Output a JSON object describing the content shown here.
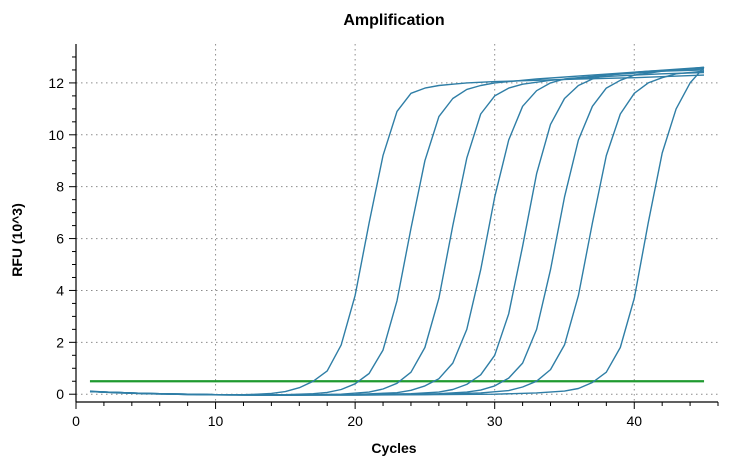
{
  "chart_data": {
    "type": "line",
    "title": "Amplification",
    "xlabel": "Cycles",
    "ylabel": "RFU (10^3)",
    "xlim": [
      0,
      46
    ],
    "ylim": [
      -0.3,
      13.5
    ],
    "xticks": [
      0,
      10,
      20,
      30,
      40
    ],
    "yticks": [
      0,
      2,
      4,
      6,
      8,
      10,
      12
    ],
    "grid": true,
    "legend": "none",
    "threshold": 0.5,
    "colors": {
      "curve": "#2f7ea6",
      "threshold": "#1f9a2f",
      "grid": "#8c8c8c",
      "axis": "#000000"
    },
    "series": [
      {
        "values": [
          [
            1,
            0.12
          ],
          [
            2,
            0.09
          ],
          [
            3,
            0.06
          ],
          [
            4,
            0.04
          ],
          [
            5,
            0.02
          ],
          [
            6,
            0.01
          ],
          [
            7,
            0.0
          ],
          [
            8,
            -0.01
          ],
          [
            9,
            -0.01
          ],
          [
            10,
            -0.02
          ],
          [
            11,
            -0.02
          ],
          [
            12,
            -0.02
          ],
          [
            13,
            0.0
          ],
          [
            14,
            0.03
          ],
          [
            15,
            0.1
          ],
          [
            16,
            0.25
          ],
          [
            17,
            0.5
          ],
          [
            18,
            0.9
          ],
          [
            19,
            1.9
          ],
          [
            20,
            3.8
          ],
          [
            21,
            6.6
          ],
          [
            22,
            9.2
          ],
          [
            23,
            10.9
          ],
          [
            24,
            11.6
          ],
          [
            25,
            11.8
          ],
          [
            26,
            11.9
          ],
          [
            27,
            11.95
          ],
          [
            28,
            12.0
          ],
          [
            30,
            12.05
          ],
          [
            33,
            12.1
          ],
          [
            36,
            12.15
          ],
          [
            40,
            12.2
          ],
          [
            45,
            12.3
          ]
        ]
      },
      {
        "values": [
          [
            1,
            0.1
          ],
          [
            3,
            0.05
          ],
          [
            5,
            0.02
          ],
          [
            7,
            0.0
          ],
          [
            9,
            -0.02
          ],
          [
            11,
            -0.03
          ],
          [
            13,
            -0.03
          ],
          [
            15,
            -0.02
          ],
          [
            17,
            0.02
          ],
          [
            18,
            0.07
          ],
          [
            19,
            0.18
          ],
          [
            20,
            0.4
          ],
          [
            21,
            0.8
          ],
          [
            22,
            1.7
          ],
          [
            23,
            3.6
          ],
          [
            24,
            6.4
          ],
          [
            25,
            9.0
          ],
          [
            26,
            10.7
          ],
          [
            27,
            11.4
          ],
          [
            28,
            11.75
          ],
          [
            29,
            11.9
          ],
          [
            30,
            12.0
          ],
          [
            33,
            12.15
          ],
          [
            37,
            12.3
          ],
          [
            41,
            12.45
          ],
          [
            45,
            12.6
          ]
        ]
      },
      {
        "values": [
          [
            1,
            0.1
          ],
          [
            4,
            0.04
          ],
          [
            8,
            -0.01
          ],
          [
            12,
            -0.03
          ],
          [
            16,
            -0.03
          ],
          [
            19,
            0.0
          ],
          [
            21,
            0.08
          ],
          [
            22,
            0.2
          ],
          [
            23,
            0.42
          ],
          [
            24,
            0.85
          ],
          [
            25,
            1.8
          ],
          [
            26,
            3.7
          ],
          [
            27,
            6.5
          ],
          [
            28,
            9.1
          ],
          [
            29,
            10.8
          ],
          [
            30,
            11.5
          ],
          [
            31,
            11.8
          ],
          [
            32,
            11.95
          ],
          [
            34,
            12.1
          ],
          [
            38,
            12.25
          ],
          [
            42,
            12.35
          ],
          [
            45,
            12.4
          ]
        ]
      },
      {
        "values": [
          [
            1,
            0.1
          ],
          [
            5,
            0.03
          ],
          [
            10,
            -0.02
          ],
          [
            15,
            -0.03
          ],
          [
            20,
            -0.01
          ],
          [
            23,
            0.06
          ],
          [
            24,
            0.15
          ],
          [
            25,
            0.32
          ],
          [
            26,
            0.6
          ],
          [
            27,
            1.2
          ],
          [
            28,
            2.5
          ],
          [
            29,
            4.8
          ],
          [
            30,
            7.6
          ],
          [
            31,
            9.8
          ],
          [
            32,
            11.1
          ],
          [
            33,
            11.7
          ],
          [
            34,
            12.0
          ],
          [
            35,
            12.15
          ],
          [
            38,
            12.3
          ],
          [
            42,
            12.45
          ],
          [
            45,
            12.5
          ]
        ]
      },
      {
        "values": [
          [
            1,
            0.1
          ],
          [
            5,
            0.03
          ],
          [
            10,
            -0.02
          ],
          [
            15,
            -0.03
          ],
          [
            20,
            -0.02
          ],
          [
            24,
            0.02
          ],
          [
            26,
            0.08
          ],
          [
            27,
            0.18
          ],
          [
            28,
            0.38
          ],
          [
            29,
            0.75
          ],
          [
            30,
            1.5
          ],
          [
            31,
            3.1
          ],
          [
            32,
            5.7
          ],
          [
            33,
            8.5
          ],
          [
            34,
            10.4
          ],
          [
            35,
            11.4
          ],
          [
            36,
            11.9
          ],
          [
            37,
            12.15
          ],
          [
            38,
            12.3
          ],
          [
            41,
            12.45
          ],
          [
            45,
            12.55
          ]
        ]
      },
      {
        "values": [
          [
            1,
            0.1
          ],
          [
            5,
            0.03
          ],
          [
            10,
            -0.02
          ],
          [
            15,
            -0.03
          ],
          [
            20,
            -0.02
          ],
          [
            26,
            0.02
          ],
          [
            28,
            0.08
          ],
          [
            29,
            0.16
          ],
          [
            30,
            0.32
          ],
          [
            31,
            0.62
          ],
          [
            32,
            1.2
          ],
          [
            33,
            2.5
          ],
          [
            34,
            4.8
          ],
          [
            35,
            7.6
          ],
          [
            36,
            9.8
          ],
          [
            37,
            11.1
          ],
          [
            38,
            11.8
          ],
          [
            39,
            12.1
          ],
          [
            40,
            12.3
          ],
          [
            42,
            12.45
          ],
          [
            45,
            12.6
          ]
        ]
      },
      {
        "values": [
          [
            1,
            0.1
          ],
          [
            5,
            0.03
          ],
          [
            10,
            -0.02
          ],
          [
            15,
            -0.03
          ],
          [
            20,
            -0.03
          ],
          [
            25,
            -0.01
          ],
          [
            29,
            0.05
          ],
          [
            31,
            0.14
          ],
          [
            32,
            0.28
          ],
          [
            33,
            0.5
          ],
          [
            34,
            0.95
          ],
          [
            35,
            1.9
          ],
          [
            36,
            3.8
          ],
          [
            37,
            6.6
          ],
          [
            38,
            9.2
          ],
          [
            39,
            10.8
          ],
          [
            40,
            11.6
          ],
          [
            41,
            12.0
          ],
          [
            42,
            12.2
          ],
          [
            43,
            12.35
          ],
          [
            45,
            12.45
          ]
        ]
      },
      {
        "values": [
          [
            1,
            0.1
          ],
          [
            5,
            0.03
          ],
          [
            10,
            -0.02
          ],
          [
            15,
            -0.03
          ],
          [
            20,
            -0.03
          ],
          [
            25,
            -0.02
          ],
          [
            30,
            0.0
          ],
          [
            33,
            0.05
          ],
          [
            35,
            0.12
          ],
          [
            36,
            0.22
          ],
          [
            37,
            0.45
          ],
          [
            38,
            0.85
          ],
          [
            39,
            1.8
          ],
          [
            40,
            3.7
          ],
          [
            41,
            6.6
          ],
          [
            42,
            9.3
          ],
          [
            43,
            11.0
          ],
          [
            44,
            12.0
          ],
          [
            45,
            12.6
          ]
        ]
      }
    ]
  }
}
